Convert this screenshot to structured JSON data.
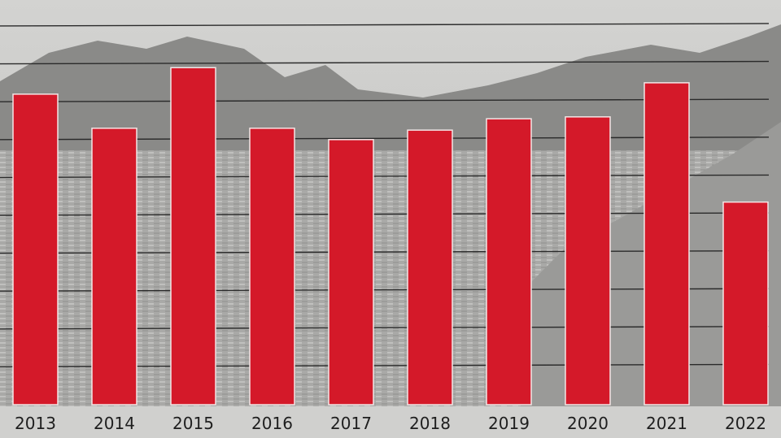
{
  "chart_data": {
    "type": "bar",
    "title": "",
    "xlabel": "",
    "ylabel": "",
    "categories": [
      "2013",
      "2014",
      "2015",
      "2016",
      "2017",
      "2018",
      "2019",
      "2020",
      "2021",
      "2022"
    ],
    "values": [
      8.2,
      7.3,
      8.9,
      7.3,
      7.0,
      7.25,
      7.55,
      7.6,
      8.5,
      5.35
    ],
    "ylim": [
      0,
      10.3
    ],
    "grid": true,
    "colors": {
      "bar": "#d41929",
      "bar_edge": "#f3e6e6",
      "gridline": "#2a2a2a",
      "background": "#c9c9c7"
    }
  }
}
